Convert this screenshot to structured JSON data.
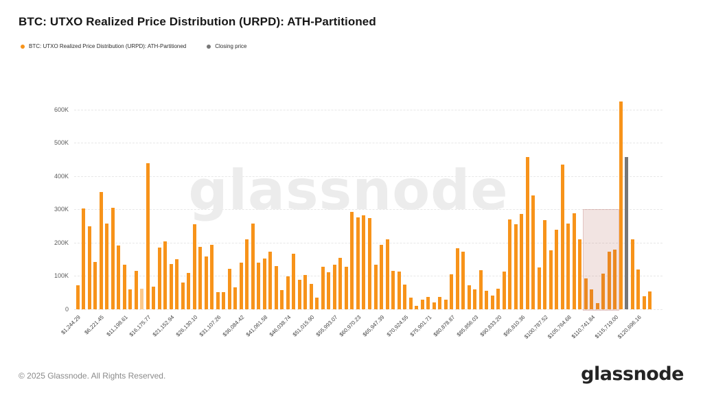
{
  "header": {
    "title": "BTC: UTXO Realized Price Distribution (URPD): ATH-Partitioned"
  },
  "legend": {
    "items": [
      {
        "label": "BTC: UTXO Realized Price Distribution (URPD): ATH-Partitioned",
        "color": "#F7931A"
      },
      {
        "label": "Closing price",
        "color": "#777777"
      }
    ]
  },
  "watermark": {
    "text": "glassnode"
  },
  "footer": {
    "copyright": "© 2025 Glassnode. All Rights Reserved.",
    "logo_text": "glassnode"
  },
  "chart_data": {
    "type": "bar",
    "title": "BTC: UTXO Realized Price Distribution (URPD): ATH-Partitioned",
    "xlabel": "",
    "ylabel": "",
    "ylim": [
      0,
      650000
    ],
    "grid": "horizontal-dashed",
    "legend_position": "top-left",
    "y_tick_values": [
      0,
      100000,
      200000,
      300000,
      400000,
      500000,
      600000
    ],
    "y_tick_labels": [
      "0",
      "100K",
      "200K",
      "300K",
      "400K",
      "500K",
      "600K"
    ],
    "x_tick_every_n_bars": 4,
    "x_tick_labels": [
      "$1,244.29",
      "$6,221.45",
      "$11,198.61",
      "$16,175.77",
      "$21,152.94",
      "$26,130.10",
      "$31,107.26",
      "$36,084.42",
      "$41,061.58",
      "$46,038.74",
      "$51,015.90",
      "$55,993.07",
      "$60,970.23",
      "$65,947.39",
      "$70,924.55",
      "$75,901.71",
      "$80,878.87",
      "$85,856.03",
      "$90,833.20",
      "$95,810.36",
      "$100,787.52",
      "$105,764.68",
      "$110,741.84",
      "$115,719.00",
      "$120,696.16"
    ],
    "series": [
      {
        "name": "BTC: UTXO Realized Price Distribution (URPD): ATH-Partitioned",
        "color": "#F7931A",
        "values": [
          72000,
          302000,
          250000,
          143000,
          353000,
          257000,
          305000,
          191000,
          133000,
          60000,
          116000,
          62000,
          439000,
          69000,
          186000,
          203000,
          136000,
          150000,
          81000,
          110000,
          256000,
          188000,
          158000,
          193000,
          52000,
          52000,
          122000,
          65000,
          140000,
          210000,
          258000,
          140000,
          152000,
          174000,
          130000,
          57000,
          99000,
          167000,
          88000,
          103000,
          77000,
          34000,
          127000,
          112000,
          134000,
          154000,
          127000,
          293000,
          276000,
          282000,
          273000,
          133000,
          193000,
          211000,
          115000,
          114000,
          74000,
          34000,
          10000,
          28000,
          38000,
          21000,
          38000,
          28000,
          105000,
          184000,
          172000,
          72000,
          60000,
          117000,
          55000,
          41000,
          62000,
          114000,
          269000,
          255000,
          286000,
          457000,
          342000,
          126000,
          267000,
          177000,
          238000,
          435000,
          257000,
          289000,
          210000,
          93000,
          60000,
          19000,
          108000,
          172000,
          179000,
          625000,
          457000,
          211000,
          120000,
          39000,
          53000
        ]
      }
    ],
    "closing_price_bar": {
      "index": 94,
      "value": 457000,
      "color": "#777777",
      "label": "Closing price"
    },
    "muted_bar": {
      "index": 11,
      "opacity": 0.5
    },
    "highlight_region": {
      "start_index": 87,
      "end_index": 92,
      "top_value": 300000,
      "fill": "rgba(174,84,76,0.16)",
      "border": "rgba(174,84,76,0.22)"
    }
  }
}
